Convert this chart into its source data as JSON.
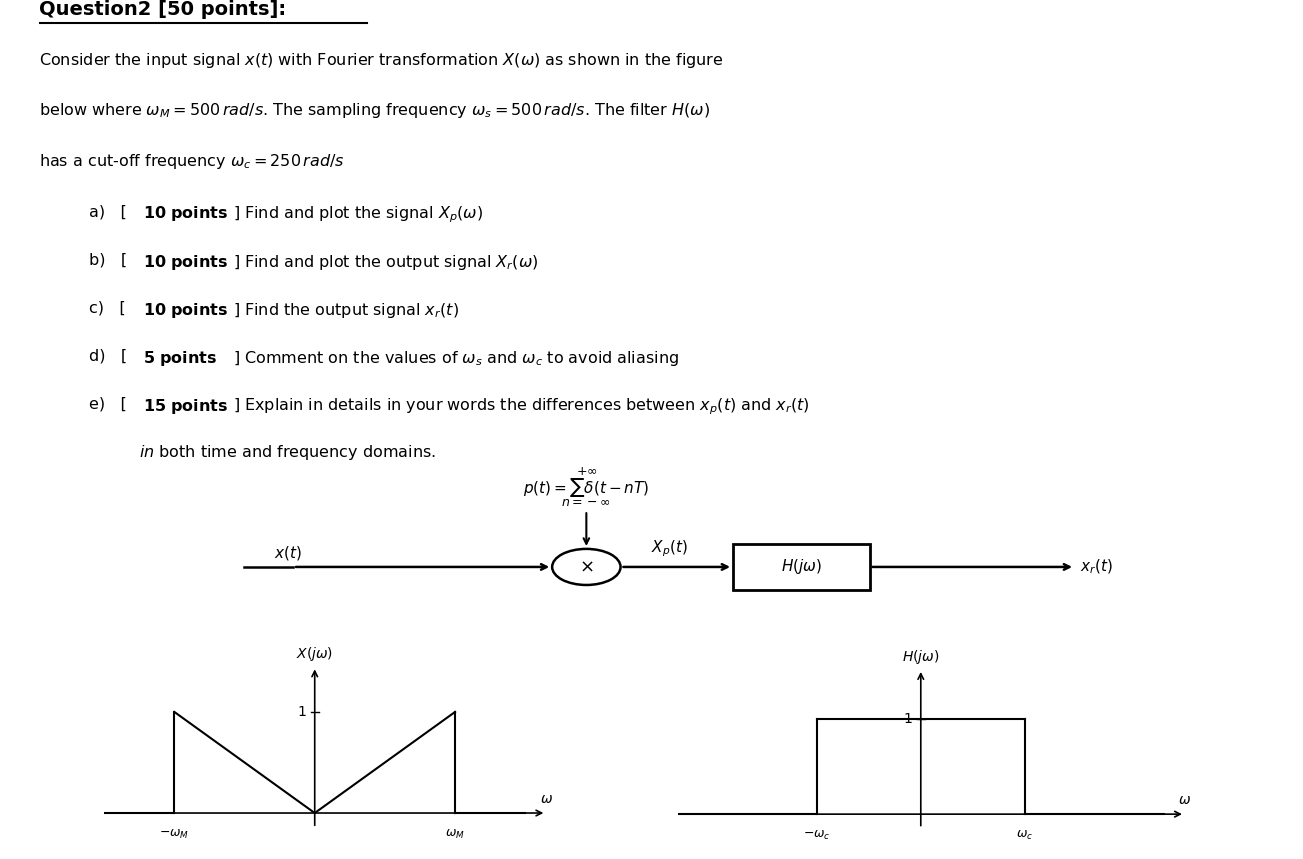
{
  "fig_width": 13.03,
  "fig_height": 8.59,
  "bg_color": "#ffffff",
  "title": "Question2 [50 points]:",
  "para_line1": "Consider the input signal $x(t)$ with Fourier transformation $X(\\omega)$ as shown in the figure",
  "para_line2": "below where $\\omega_M = 500\\,rad/s$. The sampling frequency $\\omega_s = 500\\,rad/s$. The filter $H(\\omega)$",
  "para_line3": "has a cut-off frequency $\\omega_c = 250\\,rad/s$",
  "item_a": "a)   [10 points] Find and plot the signal $X_p(\\omega)$",
  "item_b": "b)   [10 points] Find and plot the output signal $X_r(\\omega)$",
  "item_c": "c)   [10 points] Find the output signal $x_r(t)$",
  "item_d": "d)   [5 points] Comment on the values of $\\omega_s$ and $\\omega_c$ to avoid aliasing",
  "item_e": "e)   [15 points] Explain in details in your words the differences between $x_p(t)$ and $x_r(t)$",
  "item_e2": "      $\\mathit{in}$ both time and frequency domains.",
  "pt_label_a": "[\\mathbf{10\\ points}]",
  "pt_label_b": "[\\mathbf{10\\ points}]",
  "pt_label_c": "[\\mathbf{10\\ points}]",
  "pt_label_d": "[\\mathbf{5\\ points}]",
  "pt_label_e": "[\\mathbf{15\\ points}]",
  "ptext": "$p(t) = \\sum \\delta(t - nT)$",
  "ptext_top": "$+\\infty$",
  "ptext_bot": "$n = -\\infty$",
  "xp_label": "$X_p(t)$",
  "hjw_box_label": "$H(j\\omega)$",
  "xr_label": "$x_r(t)$",
  "xt_label": "$x(t)$",
  "xjw_title": "$X(j\\omega)$",
  "hjw_title": "$H(j\\omega)$",
  "omega_label": "$\\omega$",
  "one_label": "$1$",
  "neg_wM": "$-\\omega_M$",
  "pos_wM": "$\\omega_M$",
  "neg_wC": "$-\\omega_c$",
  "pos_wC": "$\\omega_c$",
  "fontsize_main": 11.5,
  "fontsize_title": 14,
  "fontsize_small": 9,
  "fontsize_diag": 11,
  "fontsize_plot": 10
}
